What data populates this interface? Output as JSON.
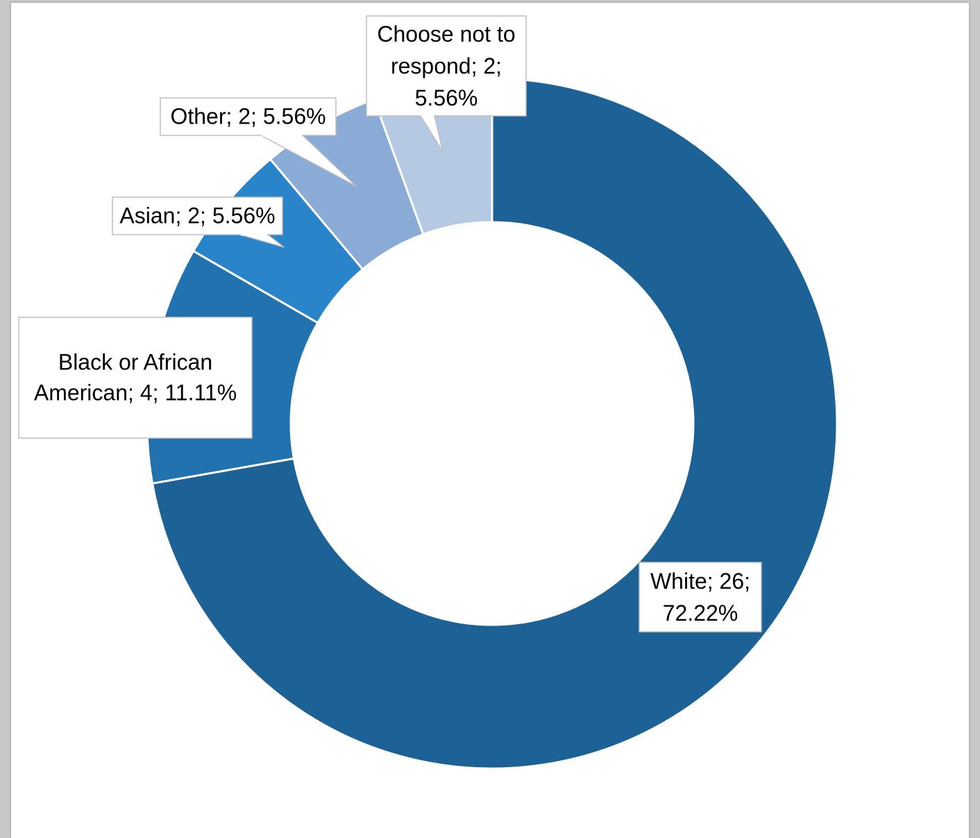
{
  "chart_data": {
    "type": "pie",
    "variant": "donut",
    "categories": [
      "White",
      "Black or African American",
      "Asian",
      "Other",
      "Choose not to respond"
    ],
    "values": [
      26,
      4,
      2,
      2,
      2
    ],
    "percentages": [
      72.22,
      11.11,
      5.56,
      5.56,
      5.56
    ],
    "colors": [
      "#1d6296",
      "#2272af",
      "#2984c9",
      "#8aabd5",
      "#b6c9e2"
    ],
    "labels": [
      [
        "White; 26;",
        "72.22%"
      ],
      [
        "Black or African",
        "American; 4; 11.11%"
      ],
      [
        "Asian; 2; 5.56%"
      ],
      [
        "Other; 2; 5.56%"
      ],
      [
        "Choose not to",
        "respond; 2;",
        "5.56%"
      ]
    ],
    "start_angle_deg": 0,
    "direction": "clockwise",
    "legend": "none"
  }
}
